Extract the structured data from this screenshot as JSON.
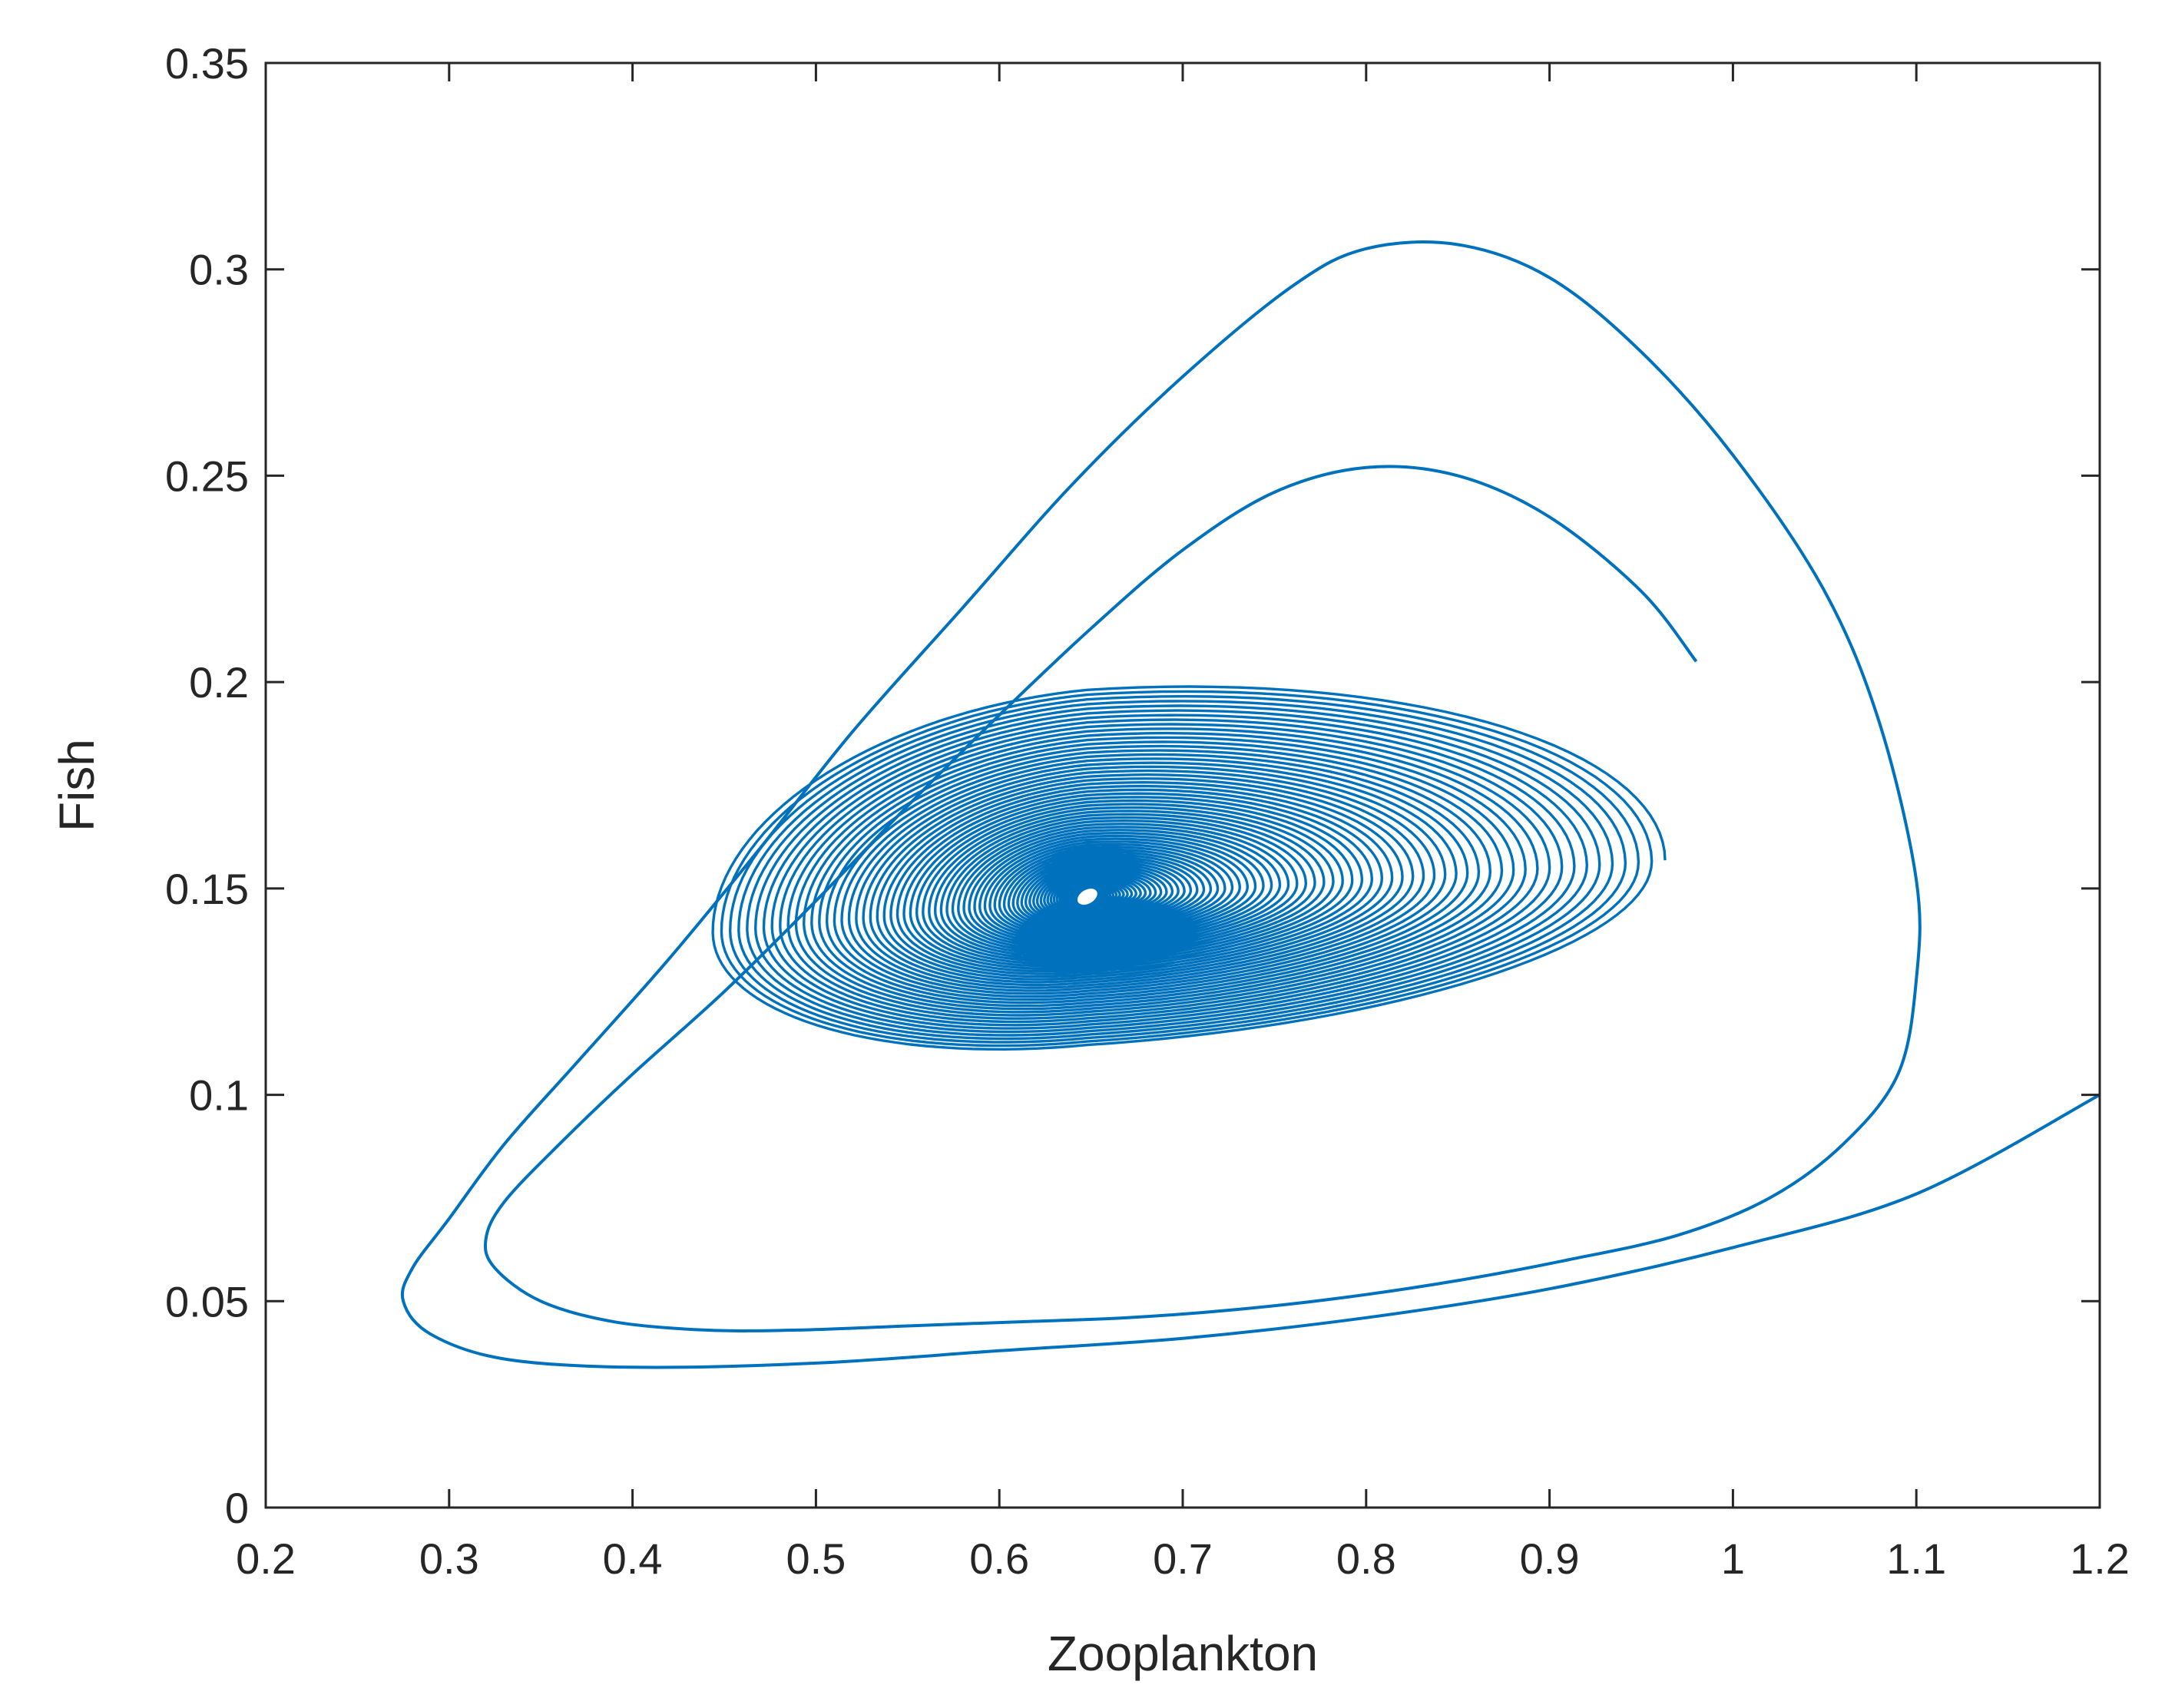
{
  "chart_data": {
    "type": "line",
    "title": "",
    "xlabel": "Zooplankton",
    "ylabel": "Fish",
    "xlim": [
      0.2,
      1.2
    ],
    "ylim": [
      0,
      0.35
    ],
    "x_ticks": [
      "0.2",
      "0.3",
      "0.4",
      "0.5",
      "0.6",
      "0.7",
      "0.8",
      "0.9",
      "1",
      "1.1",
      "1.2"
    ],
    "y_ticks": [
      "0",
      "0.05",
      "0.1",
      "0.15",
      "0.2",
      "0.25",
      "0.3",
      "0.35"
    ],
    "x_tick_values": [
      0.2,
      0.3,
      0.4,
      0.5,
      0.6,
      0.7,
      0.8,
      0.9,
      1.0,
      1.1,
      1.2
    ],
    "y_tick_values": [
      0,
      0.05,
      0.1,
      0.15,
      0.2,
      0.25,
      0.3,
      0.35
    ],
    "grid": false,
    "legend": "none",
    "series_color": "#0072BD",
    "equilibrium": {
      "x": 0.648,
      "y": 0.148
    },
    "series": [
      {
        "x": [
          1.2,
          1.1,
          1.0,
          0.9,
          0.8,
          0.7,
          0.6,
          0.5,
          0.4,
          0.33,
          0.29,
          0.275,
          0.28,
          0.3,
          0.33,
          0.37,
          0.42,
          0.47,
          0.52,
          0.58,
          0.64,
          0.7,
          0.76,
          0.8,
          0.85,
          0.9,
          0.95,
          1.0,
          1.05,
          1.08,
          1.1,
          1.1,
          1.09,
          1.06,
          1.02,
          0.97,
          0.91,
          0.85,
          0.79,
          0.73,
          0.67,
          0.61,
          0.55,
          0.49,
          0.44,
          0.39,
          0.35,
          0.325,
          0.32,
          0.33,
          0.36,
          0.4,
          0.45,
          0.5,
          0.55,
          0.6,
          0.65,
          0.7,
          0.75,
          0.8,
          0.85,
          0.9,
          0.95,
          0.98
        ],
        "y": [
          0.1,
          0.076,
          0.063,
          0.053,
          0.046,
          0.041,
          0.038,
          0.035,
          0.034,
          0.036,
          0.042,
          0.05,
          0.058,
          0.07,
          0.088,
          0.108,
          0.133,
          0.16,
          0.188,
          0.218,
          0.248,
          0.274,
          0.296,
          0.305,
          0.306,
          0.298,
          0.28,
          0.255,
          0.222,
          0.19,
          0.152,
          0.128,
          0.105,
          0.088,
          0.075,
          0.066,
          0.06,
          0.055,
          0.051,
          0.048,
          0.046,
          0.045,
          0.044,
          0.043,
          0.043,
          0.045,
          0.05,
          0.058,
          0.065,
          0.074,
          0.088,
          0.105,
          0.125,
          0.147,
          0.17,
          0.192,
          0.213,
          0.232,
          0.246,
          0.252,
          0.25,
          0.24,
          0.222,
          0.205
        ]
      }
    ]
  }
}
